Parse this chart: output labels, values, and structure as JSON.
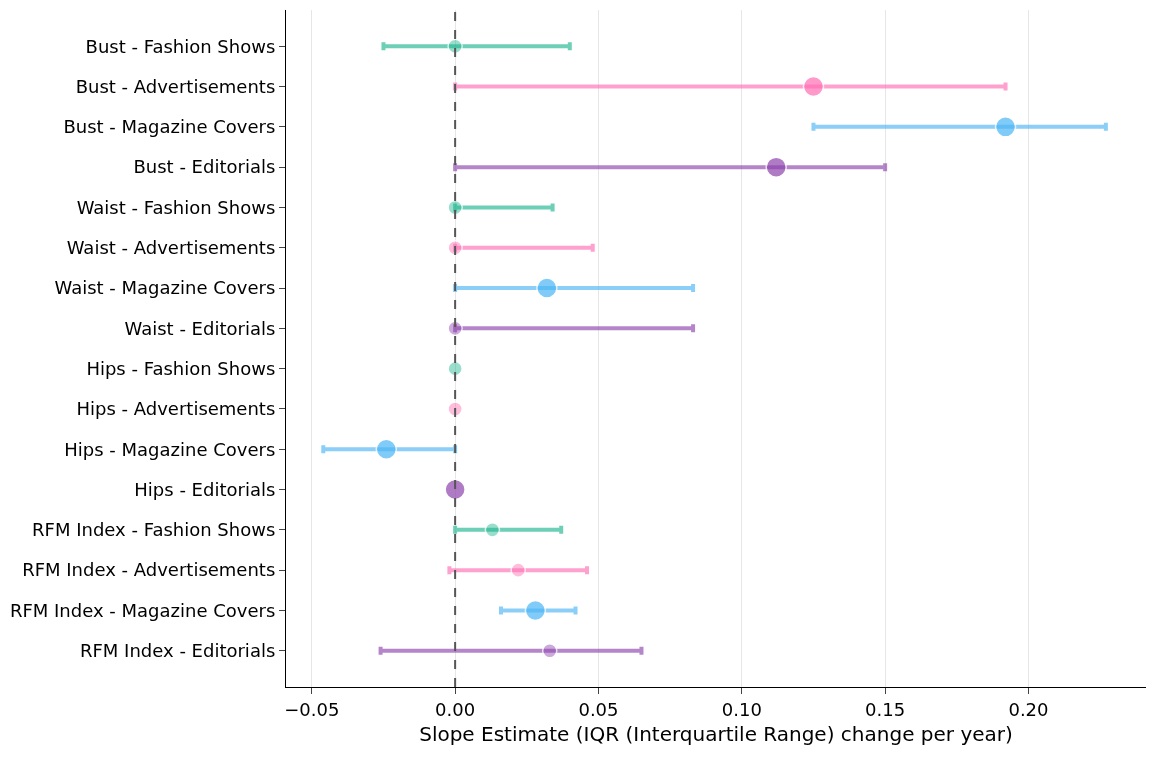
{
  "chart_data": {
    "type": "bubble",
    "orientation": "horizontal",
    "xlabel": "Slope Estimate (IQR (Interquartile Range) change per year)",
    "categories": [
      "Bust - Fashion Shows",
      "Bust - Advertisements",
      "Bust - Magazine Covers",
      "Bust - Editorials",
      "Waist - Fashion Shows",
      "Waist - Advertisements",
      "Waist - Magazine Covers",
      "Waist - Editorials",
      "Hips - Fashion Shows",
      "Hips - Advertisements",
      "Hips - Magazine Covers",
      "Hips - Editorials",
      "RFM Index - Fashion Shows",
      "RFM Index - Advertisements",
      "RFM Index - Magazine Covers",
      "RFM Index - Editorials"
    ],
    "series": [
      {
        "color": "#20b591",
        "values": [
          0.0,
          null,
          null,
          null,
          0.0,
          null,
          null,
          null,
          0.0,
          null,
          null,
          null,
          0.013,
          null,
          null,
          null
        ],
        "sizes": [
          0.5,
          null,
          null,
          null,
          0.5,
          null,
          null,
          null,
          0.5,
          null,
          null,
          null,
          0.5,
          null,
          null,
          null
        ],
        "errors": [
          [
            -0.025,
            0.04
          ],
          null,
          null,
          null,
          [
            0.0,
            0.034
          ],
          null,
          null,
          null,
          null,
          null,
          null,
          null,
          [
            0.0,
            0.037
          ],
          null,
          null,
          null
        ]
      },
      {
        "color": "#ff6eb4",
        "values": [
          null,
          0.125,
          null,
          null,
          null,
          0.0,
          null,
          null,
          null,
          0.0,
          null,
          null,
          null,
          0.022,
          null,
          null
        ],
        "sizes": [
          null,
          1,
          null,
          null,
          null,
          0.5,
          null,
          null,
          null,
          0.5,
          null,
          null,
          null,
          0.5,
          null,
          null
        ],
        "errors": [
          null,
          [
            0.0,
            0.192
          ],
          null,
          null,
          null,
          [
            0.0,
            0.048
          ],
          null,
          null,
          null,
          null,
          null,
          null,
          null,
          [
            -0.002,
            0.046
          ],
          null,
          null
        ]
      },
      {
        "color": "#4db6f6",
        "values": [
          null,
          null,
          0.192,
          null,
          null,
          null,
          0.032,
          null,
          null,
          null,
          -0.024,
          null,
          null,
          null,
          0.028,
          null
        ],
        "sizes": [
          null,
          null,
          1,
          null,
          null,
          null,
          1,
          null,
          null,
          null,
          1,
          null,
          null,
          null,
          1,
          null
        ],
        "errors": [
          null,
          null,
          [
            0.125,
            0.227
          ],
          null,
          null,
          null,
          [
            0.0,
            0.083
          ],
          null,
          null,
          null,
          [
            -0.046,
            0.0
          ],
          null,
          null,
          null,
          [
            0.016,
            0.042
          ],
          null
        ]
      },
      {
        "color": "#8e44ad",
        "values": [
          null,
          null,
          null,
          0.112,
          null,
          null,
          null,
          0.0,
          null,
          null,
          null,
          0.0,
          null,
          null,
          null,
          0.033
        ],
        "sizes": [
          null,
          null,
          null,
          1,
          null,
          null,
          null,
          0.5,
          null,
          null,
          null,
          1,
          null,
          null,
          null,
          0.5
        ],
        "errors": [
          null,
          null,
          null,
          [
            0.0,
            0.15
          ],
          null,
          null,
          null,
          [
            0.0,
            0.083
          ],
          null,
          null,
          null,
          null,
          null,
          null,
          null,
          [
            -0.026,
            0.065
          ]
        ]
      }
    ],
    "xlim": [
      -0.059,
      0.241
    ],
    "xticks": [
      {
        "value": -0.05,
        "label": "−0.05"
      },
      {
        "value": 0.0,
        "label": "0.00"
      },
      {
        "value": 0.05,
        "label": "0.05"
      },
      {
        "value": 0.1,
        "label": "0.10"
      },
      {
        "value": 0.15,
        "label": "0.15"
      },
      {
        "value": 0.2,
        "label": "0.20"
      }
    ],
    "grid": "x",
    "ref_lines": [
      {
        "axis": "x",
        "value": 0.0,
        "color": "#555555",
        "line_style": "dashed"
      }
    ]
  }
}
